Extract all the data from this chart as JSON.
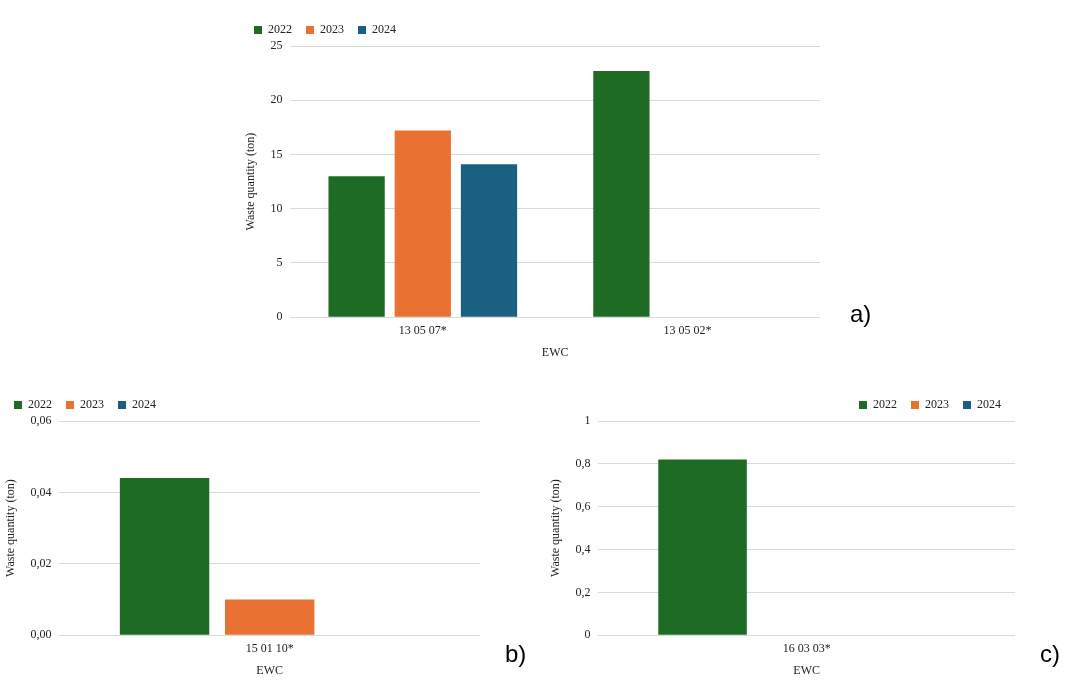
{
  "chart_data": [
    {
      "type": "bar",
      "categories": [
        "13 05 07*",
        "13 05 02*"
      ],
      "xlabel": "EWC",
      "ylabel": "Waste quantity (ton)",
      "ylim": [
        0,
        25
      ],
      "yticks": [
        0,
        5,
        10,
        15,
        20,
        25
      ],
      "grid": "y",
      "legend": "top left",
      "annotations": [
        "a)"
      ],
      "series": [
        {
          "name": "2022",
          "color": "#1e6b24",
          "values": [
            13.0,
            22.7
          ]
        },
        {
          "name": "2023",
          "color": "#e97132",
          "values": [
            17.2,
            0
          ]
        },
        {
          "name": "2024",
          "color": "#196083",
          "values": [
            14.1,
            0
          ]
        }
      ]
    },
    {
      "type": "bar",
      "categories": [
        "15 01 10*"
      ],
      "xlabel": "EWC",
      "ylabel": "Waste quantity (ton)",
      "ylim": [
        0,
        0.06
      ],
      "yticks": [
        {
          "value": 0,
          "label": "0,00"
        },
        {
          "value": 0.02,
          "label": "0,02"
        },
        {
          "value": 0.04,
          "label": "0,04"
        },
        {
          "value": 0.06,
          "label": "0,06"
        }
      ],
      "grid": "y",
      "legend": "top left",
      "annotations": [
        "b)"
      ],
      "series": [
        {
          "name": "2022",
          "color": "#1e6b24",
          "values": [
            0.044
          ]
        },
        {
          "name": "2023",
          "color": "#e97132",
          "values": [
            0.01
          ]
        },
        {
          "name": "2024",
          "color": "#196083",
          "values": [
            0
          ]
        }
      ]
    },
    {
      "type": "bar",
      "categories": [
        "16 03 03*"
      ],
      "xlabel": "EWC",
      "ylabel": "Waste quantity (ton)",
      "ylim": [
        0,
        1
      ],
      "yticks": [
        0,
        {
          "value": 0.2,
          "label": "0,2"
        },
        {
          "value": 0.4,
          "label": "0,4"
        },
        {
          "value": 0.6,
          "label": "0,6"
        },
        {
          "value": 0.8,
          "label": "0,8"
        },
        1
      ],
      "grid": "y",
      "legend": "top right",
      "annotations": [
        "c)"
      ],
      "series": [
        {
          "name": "2022",
          "color": "#1e6b24",
          "values": [
            0.82
          ]
        },
        {
          "name": "2023",
          "color": "#e97132",
          "values": [
            0
          ]
        },
        {
          "name": "2024",
          "color": "#196083",
          "values": [
            0
          ]
        }
      ]
    }
  ]
}
